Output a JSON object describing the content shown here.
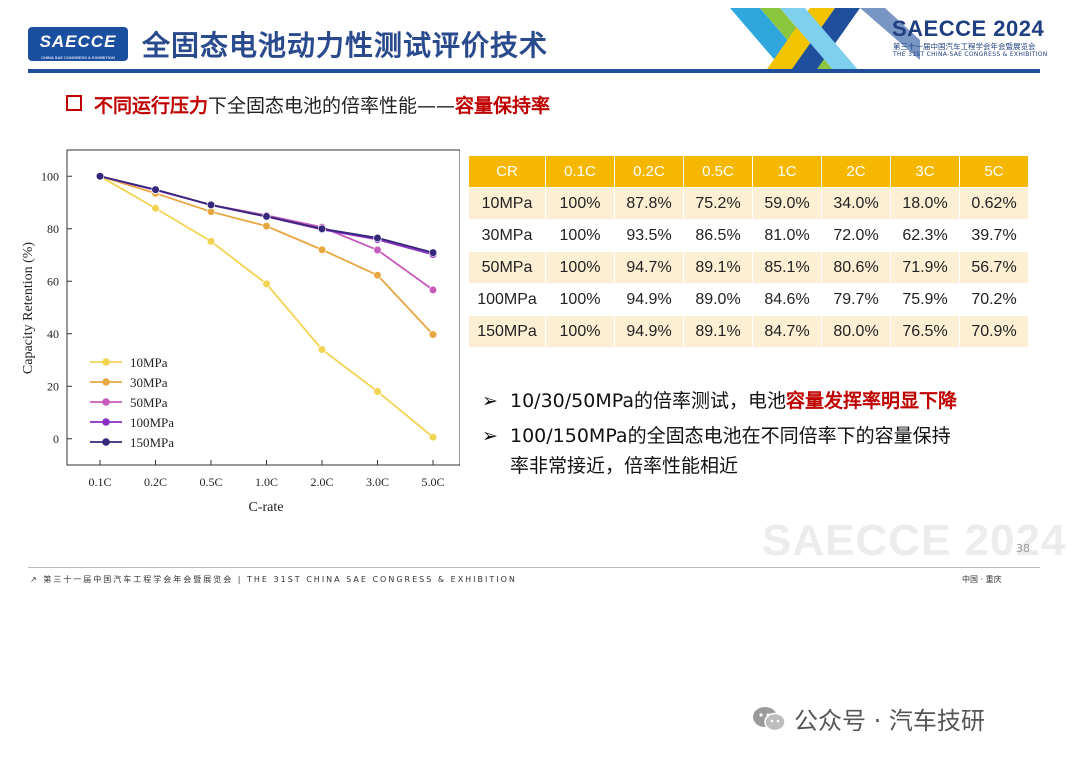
{
  "header": {
    "logo_text": "SAECCE",
    "logo_tag": "CHINA SAE CONGRESS & EXHIBITION",
    "title": "全固态电池动力性测试评价技术",
    "brand": "SAECCE 2024",
    "brand_sub_cn": "第三十一届中国汽车工程学会年会暨展览会",
    "brand_sub_en": "THE 31ST CHINA-SAE CONGRESS & EXHIBITION",
    "colors": {
      "title": "#2a4a8e",
      "rule": "#1f4e9c",
      "accent_red": "#c00000"
    }
  },
  "subtitle": {
    "highlight": "不同运行压力",
    "middle": "下全固态电池的倍率性能——",
    "tail": "容量保持率"
  },
  "chart_data": {
    "type": "line",
    "categories": [
      "0.1C",
      "0.2C",
      "0.5C",
      "1.0C",
      "2.0C",
      "3.0C",
      "5.0C"
    ],
    "xlabel": "C-rate",
    "ylabel": "Capacity Retention (%)",
    "ylim": [
      -10,
      110
    ],
    "yticks": [
      0,
      20,
      40,
      60,
      80,
      100
    ],
    "grid": false,
    "legend_position": "bottom-left",
    "series": [
      {
        "name": "10MPa",
        "color": "#f3d352",
        "values": [
          100,
          87.8,
          75.2,
          59.0,
          34.0,
          18.0,
          0.62
        ]
      },
      {
        "name": "30MPa",
        "color": "#e8a640",
        "values": [
          100,
          93.5,
          86.5,
          81.0,
          72.0,
          62.3,
          39.7
        ]
      },
      {
        "name": "50MPa",
        "color": "#c75bbd",
        "values": [
          100,
          94.7,
          89.1,
          85.1,
          80.6,
          71.9,
          56.7
        ]
      },
      {
        "name": "100MPa",
        "color": "#8a2fc2",
        "values": [
          100,
          94.9,
          89.0,
          84.6,
          79.7,
          75.9,
          70.2
        ]
      },
      {
        "name": "150MPa",
        "color": "#35277a",
        "values": [
          100,
          94.9,
          89.1,
          84.7,
          80.0,
          76.5,
          70.9
        ]
      }
    ]
  },
  "table": {
    "headers": [
      "CR",
      "0.1C",
      "0.2C",
      "0.5C",
      "1C",
      "2C",
      "3C",
      "5C"
    ],
    "rows": [
      [
        "10MPa",
        "100%",
        "87.8%",
        "75.2%",
        "59.0%",
        "34.0%",
        "18.0%",
        "0.62%"
      ],
      [
        "30MPa",
        "100%",
        "93.5%",
        "86.5%",
        "81.0%",
        "72.0%",
        "62.3%",
        "39.7%"
      ],
      [
        "50MPa",
        "100%",
        "94.7%",
        "89.1%",
        "85.1%",
        "80.6%",
        "71.9%",
        "56.7%"
      ],
      [
        "100MPa",
        "100%",
        "94.9%",
        "89.0%",
        "84.6%",
        "79.7%",
        "75.9%",
        "70.2%"
      ],
      [
        "150MPa",
        "100%",
        "94.9%",
        "89.1%",
        "84.7%",
        "80.0%",
        "76.5%",
        "70.9%"
      ]
    ],
    "colors": {
      "header": "#f5b700",
      "odd_row": "#fcefd3"
    }
  },
  "bullets": [
    {
      "arrow": "➢",
      "text": "10/30/50MPa的倍率测试，电池",
      "highlight": "容量发挥率明显下降",
      "text2": ""
    },
    {
      "arrow": "➢",
      "text": "100/150MPa的全固态电池在不同倍率下的容量保持",
      "highlight": "",
      "text2": "率非常接近，倍率性能相近"
    }
  ],
  "footer": {
    "page_number": "38",
    "watermark": "SAECCE 2024",
    "left": "第三十一届中国汽车工程学会年会暨展览会 | THE 31ST CHINA SAE CONGRESS & EXHIBITION",
    "right": "中国 · 重庆",
    "wechat": "公众号 · 汽车技研"
  }
}
